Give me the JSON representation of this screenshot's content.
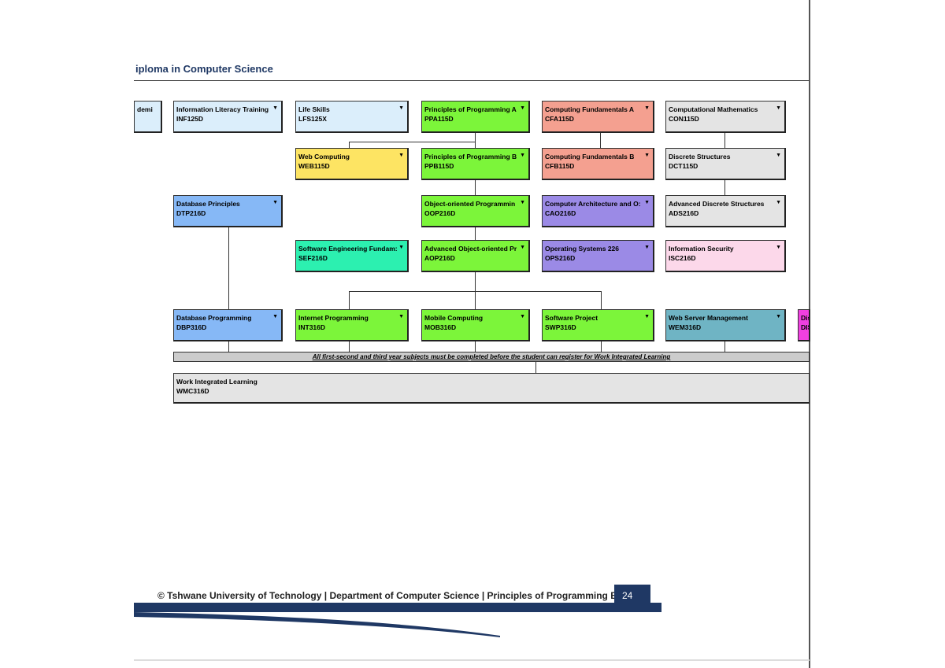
{
  "header": {
    "title": "iploma in Computer Science"
  },
  "subjects": [
    {
      "name": "demi",
      "code": "",
      "color": "#dbeefb"
    },
    {
      "name": "Information Literacy Training",
      "code": "INF125D",
      "color": "#dbeefb"
    },
    {
      "name": "Life Skills",
      "code": "LFS125X",
      "color": "#dbeefb"
    },
    {
      "name": "Principles of Programming A",
      "code": "PPA115D",
      "color": "#7cf53a"
    },
    {
      "name": "Computing Fundamentals A",
      "code": "CFA115D",
      "color": "#f4a090"
    },
    {
      "name": "Computational Mathematics",
      "code": "CON115D",
      "color": "#e4e4e4"
    },
    {
      "name": "Web Computing",
      "code": "WEB115D",
      "color": "#fde463"
    },
    {
      "name": "Principles of Programming B",
      "code": "PPB115D",
      "color": "#7cf53a"
    },
    {
      "name": "Computing Fundamentals B",
      "code": "CFB115D",
      "color": "#f4a090"
    },
    {
      "name": "Discrete Structures",
      "code": "DCT115D",
      "color": "#e4e4e4"
    },
    {
      "name": "Database Principles",
      "code": "DTP216D",
      "color": "#86b8f6"
    },
    {
      "name": "Object-oriented Programmin",
      "code": "OOP216D",
      "color": "#7cf53a"
    },
    {
      "name": "Computer Architecture and O:",
      "code": "CAO216D",
      "color": "#9b8ae6"
    },
    {
      "name": "Advanced Discrete Structures",
      "code": "ADS216D",
      "color": "#e4e4e4"
    },
    {
      "name": "Software Engineering Fundam:",
      "code": "SEF216D",
      "color": "#2cf0b0"
    },
    {
      "name": "Advanced Object-oriented Pr",
      "code": "AOP216D",
      "color": "#7cf53a"
    },
    {
      "name": "Operating Systems 226",
      "code": "OPS216D",
      "color": "#9b8ae6"
    },
    {
      "name": "Information Security",
      "code": "ISC216D",
      "color": "#fcd8ea"
    },
    {
      "name": "Database Programming",
      "code": "DBP316D",
      "color": "#86b8f6"
    },
    {
      "name": "Internet Programming",
      "code": "INT316D",
      "color": "#7cf53a"
    },
    {
      "name": "Mobile Computing",
      "code": "MOB316D",
      "color": "#7cf53a"
    },
    {
      "name": "Software Project",
      "code": "SWP316D",
      "color": "#7cf53a"
    },
    {
      "name": "Web Server Management",
      "code": "WEM316D",
      "color": "#6fb4c4"
    },
    {
      "name": "Dis",
      "code": "DIS",
      "color": "#f040e0"
    }
  ],
  "note": "All first-second and third year subjects must be completed before the student can register for Work Integrated Learning",
  "wil": {
    "name": "Work Integrated Learning",
    "code": "WMC316D"
  },
  "footer": {
    "text": "© Tshwane University of Technology | Department of Computer Science | Principles of Programming B",
    "page": "24"
  }
}
